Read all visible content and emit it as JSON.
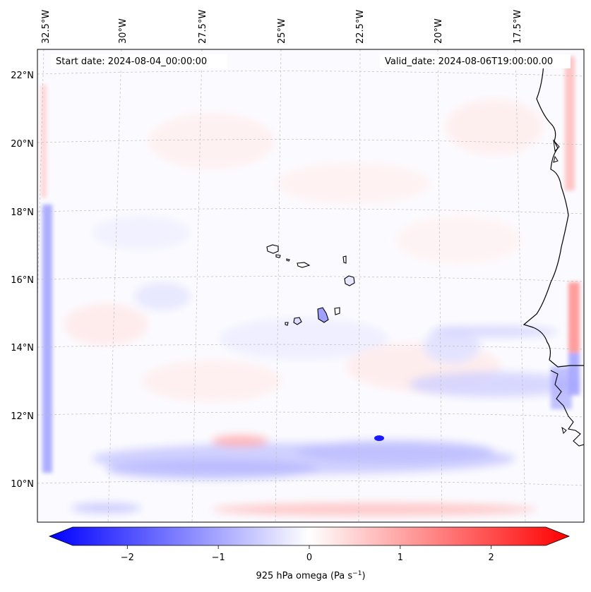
{
  "map": {
    "start_label": "Start date: 2024-08-04_00:00:00",
    "valid_label": "Valid_date: 2024-08-06T19:00:00.00",
    "lon_labels": [
      "32.5°W",
      "30°W",
      "27.5°W",
      "25°W",
      "22.5°W",
      "20°W",
      "17.5°W"
    ],
    "lat_labels": [
      "22°N",
      "20°N",
      "18°N",
      "16°N",
      "14°N",
      "12°N",
      "10°N"
    ],
    "field": "925 hPa omega",
    "colors": {
      "negative": "#0000ff",
      "zero": "#ffffff",
      "positive": "#ff0000",
      "coast": "#000000",
      "grid": "#b0b0b0"
    }
  },
  "colorbar": {
    "label_main": "925 hPa omega (Pa s",
    "label_exp": "−1",
    "label_close": ")",
    "ticks": [
      "−2",
      "−1",
      "0",
      "1",
      "2"
    ],
    "tick_values": [
      -2,
      -1,
      0,
      1,
      2
    ],
    "range": [
      -2.6,
      2.6
    ]
  }
}
